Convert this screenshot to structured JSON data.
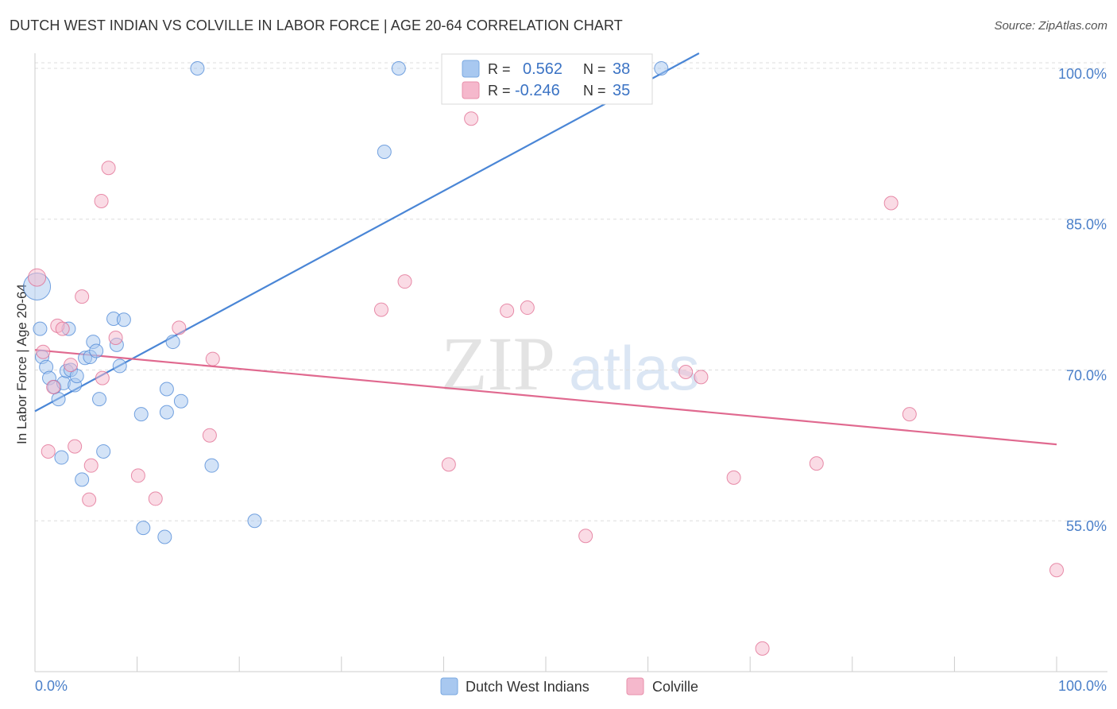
{
  "title": "DUTCH WEST INDIAN VS COLVILLE IN LABOR FORCE | AGE 20-64 CORRELATION CHART",
  "source": "Source: ZipAtlas.com",
  "watermark": {
    "zip": "ZIP",
    "atlas": "atlas"
  },
  "legend_top": [
    {
      "r_label": "R =",
      "r_value": "0.562",
      "n_label": "N =",
      "n_value": "38",
      "color": "#a8c8f0"
    },
    {
      "r_label": "R =",
      "r_value": "-0.246",
      "n_label": "N =",
      "n_value": "35",
      "color": "#f5b8cc"
    }
  ],
  "chart_data": {
    "type": "scatter",
    "title": "DUTCH WEST INDIAN VS COLVILLE IN LABOR FORCE | AGE 20-64 CORRELATION CHART",
    "xlabel": "",
    "ylabel": "In Labor Force | Age 20-64",
    "xlim": [
      0,
      100
    ],
    "ylim": [
      40,
      101.5
    ],
    "x_tick_labels": [
      "0.0%",
      "100.0%"
    ],
    "y_ticks": [
      55,
      70,
      85,
      100
    ],
    "y_tick_labels": [
      "55.0%",
      "70.0%",
      "85.0%",
      "100.0%"
    ],
    "grid": true,
    "legend_position": "top-center",
    "series": [
      {
        "name": "Dutch West Indians",
        "color": "#4a86d6",
        "fill": "#a8c8f0",
        "trend": {
          "x": [
            0,
            65
          ],
          "y": [
            65.9,
            101.5
          ]
        },
        "points": [
          [
            0.2,
            78.3
          ],
          [
            0.5,
            74.1
          ],
          [
            0.7,
            71.3
          ],
          [
            1.1,
            70.3
          ],
          [
            1.4,
            69.2
          ],
          [
            1.9,
            68.3
          ],
          [
            2.3,
            67.1
          ],
          [
            2.6,
            61.3
          ],
          [
            2.8,
            68.7
          ],
          [
            3.1,
            69.9
          ],
          [
            3.3,
            74.1
          ],
          [
            3.5,
            70.0
          ],
          [
            3.9,
            68.5
          ],
          [
            4.1,
            69.4
          ],
          [
            4.6,
            59.1
          ],
          [
            4.9,
            71.2
          ],
          [
            5.4,
            71.3
          ],
          [
            5.7,
            72.8
          ],
          [
            6.0,
            71.9
          ],
          [
            6.3,
            67.1
          ],
          [
            6.7,
            61.9
          ],
          [
            7.7,
            75.1
          ],
          [
            8.0,
            72.5
          ],
          [
            8.3,
            70.4
          ],
          [
            8.7,
            75.0
          ],
          [
            10.4,
            65.6
          ],
          [
            10.6,
            54.3
          ],
          [
            12.7,
            53.4
          ],
          [
            12.9,
            68.1
          ],
          [
            12.9,
            65.8
          ],
          [
            13.5,
            72.8
          ],
          [
            14.3,
            66.9
          ],
          [
            15.9,
            100.0
          ],
          [
            17.3,
            60.5
          ],
          [
            21.5,
            55.0
          ],
          [
            34.2,
            91.7
          ],
          [
            35.6,
            100.0
          ],
          [
            61.3,
            100.0
          ]
        ]
      },
      {
        "name": "Colville",
        "color": "#e0698f",
        "fill": "#f5b8cc",
        "trend": {
          "x": [
            0,
            100
          ],
          "y": [
            72.0,
            62.6
          ]
        },
        "points": [
          [
            0.2,
            79.2
          ],
          [
            0.8,
            71.8
          ],
          [
            1.3,
            61.9
          ],
          [
            1.8,
            68.3
          ],
          [
            2.2,
            74.4
          ],
          [
            2.7,
            74.1
          ],
          [
            3.5,
            70.5
          ],
          [
            3.9,
            62.4
          ],
          [
            4.6,
            77.3
          ],
          [
            5.3,
            57.1
          ],
          [
            5.5,
            60.5
          ],
          [
            6.5,
            86.8
          ],
          [
            6.6,
            69.2
          ],
          [
            7.2,
            90.1
          ],
          [
            7.9,
            73.2
          ],
          [
            10.1,
            59.5
          ],
          [
            11.8,
            57.2
          ],
          [
            14.1,
            74.2
          ],
          [
            17.1,
            63.5
          ],
          [
            17.4,
            71.1
          ],
          [
            33.9,
            76.0
          ],
          [
            36.2,
            78.8
          ],
          [
            40.5,
            60.6
          ],
          [
            42.7,
            95.0
          ],
          [
            46.2,
            75.9
          ],
          [
            48.2,
            76.2
          ],
          [
            53.9,
            53.5
          ],
          [
            63.7,
            69.8
          ],
          [
            65.2,
            69.3
          ],
          [
            68.4,
            59.3
          ],
          [
            71.2,
            42.3
          ],
          [
            76.5,
            60.7
          ],
          [
            83.8,
            86.6
          ],
          [
            85.6,
            65.6
          ],
          [
            100.0,
            50.1
          ]
        ]
      }
    ]
  },
  "legend_bottom": [
    {
      "label": "Dutch West Indians",
      "color": "#a8c8f0"
    },
    {
      "label": "Colville",
      "color": "#f5b8cc"
    }
  ]
}
